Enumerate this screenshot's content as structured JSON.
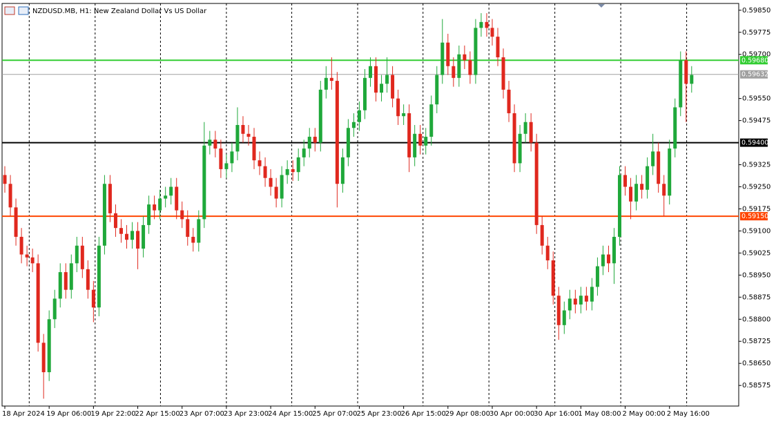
{
  "chart_data": {
    "type": "candlestick",
    "title": "NZDUSD.MB, H1:  New Zealand Dollar Vs US Dollar",
    "up_color": "#1fa83a",
    "down_color": "#e0281e",
    "xlim": [
      -0.5,
      132.5
    ],
    "ylim": [
      0.58505,
      0.59873
    ],
    "xticks": [
      {
        "value": 0,
        "label": "18 Apr 2024"
      },
      {
        "value": 8,
        "label": "19 Apr 06:00"
      },
      {
        "value": 16,
        "label": "19 Apr 22:00"
      },
      {
        "value": 24,
        "label": "22 Apr 15:00"
      },
      {
        "value": 32,
        "label": "23 Apr 07:00"
      },
      {
        "value": 40,
        "label": "23 Apr 23:00"
      },
      {
        "value": 48,
        "label": "24 Apr 15:00"
      },
      {
        "value": 56,
        "label": "25 Apr 07:00"
      },
      {
        "value": 64,
        "label": "25 Apr 23:00"
      },
      {
        "value": 72,
        "label": "26 Apr 15:00"
      },
      {
        "value": 80,
        "label": "29 Apr 08:00"
      },
      {
        "value": 88,
        "label": "30 Apr 00:00"
      },
      {
        "value": 96,
        "label": "30 Apr 16:00"
      },
      {
        "value": 104,
        "label": "1 May 08:00"
      },
      {
        "value": 112,
        "label": "2 May 00:00"
      },
      {
        "value": 120,
        "label": "2 May 16:00"
      }
    ],
    "xgrid": [
      4.4,
      16.3,
      28.1,
      40,
      51.8,
      63.7,
      75.5,
      87.4,
      99.3,
      111.2,
      123.1
    ],
    "yticks": [
      {
        "value": 0.5985,
        "label": "0.59850"
      },
      {
        "value": 0.59775,
        "label": "0.59775"
      },
      {
        "value": 0.597,
        "label": "0.59700"
      },
      {
        "value": 0.5955,
        "label": "0.59550"
      },
      {
        "value": 0.59475,
        "label": "0.59475"
      },
      {
        "value": 0.59325,
        "label": "0.59325"
      },
      {
        "value": 0.5925,
        "label": "0.59250"
      },
      {
        "value": 0.59175,
        "label": "0.59175"
      },
      {
        "value": 0.591,
        "label": "0.59100"
      },
      {
        "value": 0.59025,
        "label": "0.59025"
      },
      {
        "value": 0.5895,
        "label": "0.58950"
      },
      {
        "value": 0.58875,
        "label": "0.58875"
      },
      {
        "value": 0.588,
        "label": "0.58800"
      },
      {
        "value": 0.58725,
        "label": "0.58725"
      },
      {
        "value": 0.5865,
        "label": "0.58650"
      },
      {
        "value": 0.58575,
        "label": "0.58575"
      }
    ],
    "levels": [
      {
        "value": 0.5968,
        "label": "0.59680",
        "color": "#32cd32",
        "width": 2
      },
      {
        "value": 0.59632,
        "label": "0.59632",
        "color": "#a0a0a0",
        "width": 1
      },
      {
        "value": 0.594,
        "label": "0.59400",
        "color": "#000000",
        "width": 2
      },
      {
        "value": 0.5915,
        "label": "0.59150",
        "color": "#ff4500",
        "width": 2
      }
    ],
    "candles": [
      [
        0.5929,
        0.5932,
        0.5923,
        0.5926
      ],
      [
        0.5926,
        0.5929,
        0.5915,
        0.5918
      ],
      [
        0.5918,
        0.5921,
        0.5905,
        0.5908
      ],
      [
        0.5908,
        0.5911,
        0.5899,
        0.5902
      ],
      [
        0.5902,
        0.5905,
        0.5898,
        0.5901
      ],
      [
        0.5901,
        0.5904,
        0.5896,
        0.5899
      ],
      [
        0.5899,
        0.5902,
        0.5869,
        0.5872
      ],
      [
        0.5872,
        0.5875,
        0.5853,
        0.5862
      ],
      [
        0.5862,
        0.5883,
        0.5859,
        0.588
      ],
      [
        0.588,
        0.589,
        0.5877,
        0.5887
      ],
      [
        0.5887,
        0.5899,
        0.5884,
        0.5896
      ],
      [
        0.5896,
        0.5899,
        0.5887,
        0.589
      ],
      [
        0.589,
        0.5902,
        0.5887,
        0.5899
      ],
      [
        0.5899,
        0.5908,
        0.5896,
        0.5905
      ],
      [
        0.5905,
        0.5908,
        0.5894,
        0.5897
      ],
      [
        0.5897,
        0.59,
        0.5887,
        0.589
      ],
      [
        0.589,
        0.5893,
        0.5879,
        0.5884
      ],
      [
        0.5884,
        0.5908,
        0.5881,
        0.5905
      ],
      [
        0.5905,
        0.5929,
        0.5902,
        0.5926
      ],
      [
        0.5926,
        0.5929,
        0.5913,
        0.5916
      ],
      [
        0.5916,
        0.5919,
        0.5908,
        0.5911
      ],
      [
        0.5911,
        0.5914,
        0.5906,
        0.5909
      ],
      [
        0.5909,
        0.5912,
        0.5904,
        0.5907
      ],
      [
        0.5907,
        0.5913,
        0.5904,
        0.591
      ],
      [
        0.591,
        0.5913,
        0.5897,
        0.5904
      ],
      [
        0.5904,
        0.5915,
        0.5901,
        0.5912
      ],
      [
        0.5912,
        0.5922,
        0.5909,
        0.5919
      ],
      [
        0.5919,
        0.5922,
        0.5914,
        0.5917
      ],
      [
        0.5917,
        0.5924,
        0.5914,
        0.5921
      ],
      [
        0.5921,
        0.5925,
        0.5918,
        0.5922
      ],
      [
        0.5922,
        0.5928,
        0.5919,
        0.5925
      ],
      [
        0.5925,
        0.5928,
        0.5914,
        0.5917
      ],
      [
        0.5917,
        0.592,
        0.5911,
        0.5914
      ],
      [
        0.5914,
        0.5917,
        0.5905,
        0.5908
      ],
      [
        0.5908,
        0.5911,
        0.5903,
        0.5906
      ],
      [
        0.5906,
        0.5917,
        0.5903,
        0.5914
      ],
      [
        0.5914,
        0.5947,
        0.5911,
        0.5939
      ],
      [
        0.5939,
        0.5944,
        0.5936,
        0.5941
      ],
      [
        0.5941,
        0.5944,
        0.5935,
        0.5938
      ],
      [
        0.5938,
        0.5941,
        0.5928,
        0.5931
      ],
      [
        0.5931,
        0.5936,
        0.5928,
        0.5933
      ],
      [
        0.5933,
        0.594,
        0.593,
        0.5937
      ],
      [
        0.5937,
        0.5952,
        0.5934,
        0.5946
      ],
      [
        0.5946,
        0.5949,
        0.594,
        0.5943
      ],
      [
        0.5943,
        0.5946,
        0.5939,
        0.5942
      ],
      [
        0.5942,
        0.5945,
        0.5931,
        0.5934
      ],
      [
        0.5934,
        0.5937,
        0.5929,
        0.5932
      ],
      [
        0.5932,
        0.5935,
        0.5925,
        0.5928
      ],
      [
        0.5928,
        0.5931,
        0.5922,
        0.5925
      ],
      [
        0.5925,
        0.5928,
        0.5918,
        0.5921
      ],
      [
        0.5921,
        0.5932,
        0.5918,
        0.5929
      ],
      [
        0.5929,
        0.5934,
        0.5926,
        0.5931
      ],
      [
        0.5931,
        0.5934,
        0.5927,
        0.593
      ],
      [
        0.593,
        0.5938,
        0.5927,
        0.5935
      ],
      [
        0.5935,
        0.5941,
        0.5932,
        0.5938
      ],
      [
        0.5938,
        0.5945,
        0.5935,
        0.5942
      ],
      [
        0.5942,
        0.5945,
        0.5937,
        0.594
      ],
      [
        0.594,
        0.5961,
        0.5937,
        0.5958
      ],
      [
        0.5958,
        0.5966,
        0.5955,
        0.5962
      ],
      [
        0.5962,
        0.5969,
        0.5958,
        0.5961
      ],
      [
        0.5961,
        0.5964,
        0.5918,
        0.5926
      ],
      [
        0.5926,
        0.5938,
        0.5923,
        0.5935
      ],
      [
        0.5935,
        0.5948,
        0.5932,
        0.5945
      ],
      [
        0.5945,
        0.595,
        0.5942,
        0.5947
      ],
      [
        0.5947,
        0.5954,
        0.5944,
        0.5951
      ],
      [
        0.5951,
        0.5965,
        0.5948,
        0.5962
      ],
      [
        0.5962,
        0.5969,
        0.5959,
        0.5966
      ],
      [
        0.5966,
        0.5969,
        0.5954,
        0.5957
      ],
      [
        0.5957,
        0.5963,
        0.5954,
        0.596
      ],
      [
        0.596,
        0.5969,
        0.5957,
        0.5963
      ],
      [
        0.5963,
        0.5966,
        0.5952,
        0.5955
      ],
      [
        0.5955,
        0.5958,
        0.5946,
        0.5949
      ],
      [
        0.5949,
        0.5953,
        0.5946,
        0.595
      ],
      [
        0.595,
        0.5953,
        0.593,
        0.5935
      ],
      [
        0.5935,
        0.5946,
        0.5932,
        0.5943
      ],
      [
        0.5943,
        0.5946,
        0.5936,
        0.5939
      ],
      [
        0.5939,
        0.5945,
        0.5936,
        0.5942
      ],
      [
        0.5942,
        0.5956,
        0.5939,
        0.5953
      ],
      [
        0.5953,
        0.5966,
        0.595,
        0.5963
      ],
      [
        0.5963,
        0.5982,
        0.596,
        0.5974
      ],
      [
        0.5974,
        0.5977,
        0.5963,
        0.5966
      ],
      [
        0.5966,
        0.5969,
        0.5959,
        0.5962
      ],
      [
        0.5962,
        0.5973,
        0.5959,
        0.597
      ],
      [
        0.597,
        0.5973,
        0.5965,
        0.5968
      ],
      [
        0.5968,
        0.5971,
        0.596,
        0.5963
      ],
      [
        0.5963,
        0.5982,
        0.596,
        0.5979
      ],
      [
        0.5979,
        0.5984,
        0.5976,
        0.5981
      ],
      [
        0.5981,
        0.5984,
        0.5976,
        0.5979
      ],
      [
        0.5979,
        0.5982,
        0.5973,
        0.5976
      ],
      [
        0.5976,
        0.5979,
        0.5966,
        0.5969
      ],
      [
        0.5969,
        0.5972,
        0.5955,
        0.5958
      ],
      [
        0.5958,
        0.5961,
        0.5947,
        0.595
      ],
      [
        0.595,
        0.5953,
        0.593,
        0.5933
      ],
      [
        0.5933,
        0.5946,
        0.593,
        0.5943
      ],
      [
        0.5943,
        0.595,
        0.594,
        0.5947
      ],
      [
        0.5947,
        0.595,
        0.5937,
        0.594
      ],
      [
        0.594,
        0.5943,
        0.5909,
        0.5912
      ],
      [
        0.5912,
        0.5915,
        0.5902,
        0.5905
      ],
      [
        0.5905,
        0.5908,
        0.5897,
        0.59
      ],
      [
        0.59,
        0.5903,
        0.5885,
        0.5888
      ],
      [
        0.5888,
        0.5891,
        0.5873,
        0.5878
      ],
      [
        0.5878,
        0.5886,
        0.5875,
        0.5883
      ],
      [
        0.5883,
        0.589,
        0.588,
        0.5887
      ],
      [
        0.5887,
        0.589,
        0.5882,
        0.5885
      ],
      [
        0.5885,
        0.5891,
        0.5882,
        0.5888
      ],
      [
        0.5888,
        0.5891,
        0.5883,
        0.5886
      ],
      [
        0.5886,
        0.5894,
        0.5883,
        0.5891
      ],
      [
        0.5891,
        0.5901,
        0.5888,
        0.5898
      ],
      [
        0.5898,
        0.5905,
        0.5895,
        0.5902
      ],
      [
        0.5902,
        0.5905,
        0.5896,
        0.5899
      ],
      [
        0.5899,
        0.5911,
        0.5892,
        0.5908
      ],
      [
        0.5908,
        0.5932,
        0.5905,
        0.5929
      ],
      [
        0.5929,
        0.5932,
        0.5922,
        0.5925
      ],
      [
        0.5925,
        0.5928,
        0.5914,
        0.592
      ],
      [
        0.592,
        0.5929,
        0.5917,
        0.5926
      ],
      [
        0.5926,
        0.5929,
        0.5921,
        0.5924
      ],
      [
        0.5924,
        0.5935,
        0.5921,
        0.5932
      ],
      [
        0.5932,
        0.5943,
        0.5929,
        0.5937
      ],
      [
        0.5937,
        0.594,
        0.5923,
        0.5926
      ],
      [
        0.5926,
        0.5929,
        0.5915,
        0.5922
      ],
      [
        0.5922,
        0.5941,
        0.5919,
        0.5938
      ],
      [
        0.5938,
        0.5955,
        0.5935,
        0.5952
      ],
      [
        0.5952,
        0.5971,
        0.5949,
        0.5968
      ],
      [
        0.5968,
        0.5971,
        0.5947,
        0.596
      ],
      [
        0.596,
        0.5966,
        0.5957,
        0.5963
      ]
    ]
  }
}
